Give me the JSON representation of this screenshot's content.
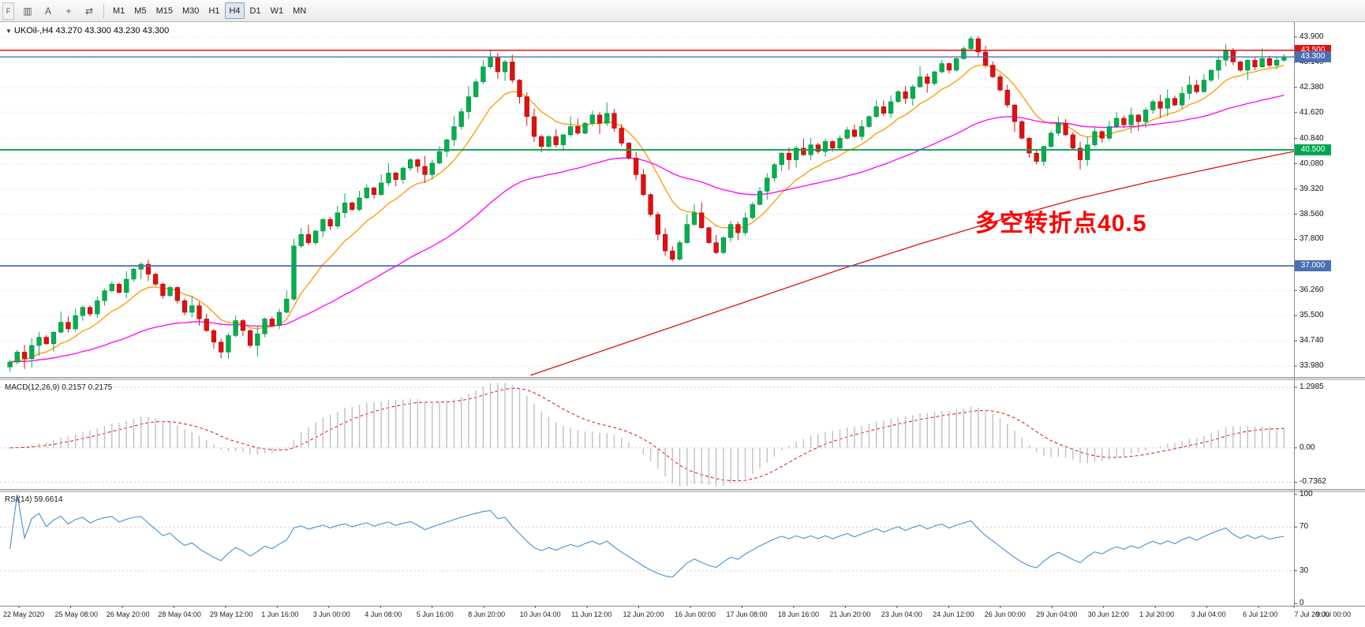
{
  "toolbar": {
    "tab_label": "F",
    "tools": [
      {
        "name": "chart-type-icon",
        "glyph": "▥"
      },
      {
        "name": "auto-scroll-button",
        "glyph": "A"
      },
      {
        "name": "crosshair-icon",
        "glyph": "+"
      },
      {
        "name": "timeframe-cycle-icon",
        "glyph": "⇄"
      }
    ],
    "timeframes": [
      "M1",
      "M5",
      "M15",
      "M30",
      "H1",
      "H4",
      "D1",
      "W1",
      "MN"
    ],
    "active_timeframe": "H4"
  },
  "chart": {
    "symbol_line": "UKOil-,H4 43.270 43.300 43.230 43.300",
    "symbol": "UKOil-",
    "timeframe": "H4",
    "ohlc": {
      "open": "43.270",
      "high": "43.300",
      "low": "43.230",
      "close": "43.300"
    },
    "annotation": {
      "text": "多空转折点40.5",
      "color": "#ff0000"
    },
    "levels": [
      {
        "label": "43.500",
        "price": 43.5,
        "color": "#e01010",
        "width": 1.6
      },
      {
        "label": "43.300",
        "price": 43.3,
        "color": "#4a6fb5",
        "width": 1.4
      },
      {
        "label": "40.500",
        "price": 40.5,
        "color": "#00a651",
        "width": 1.8
      },
      {
        "label": "37.000",
        "price": 37.0,
        "color": "#4a6fb5",
        "width": 1.8
      }
    ]
  },
  "price_axis": {
    "ticks": [
      {
        "label": "43.900",
        "value": 43.9
      },
      {
        "label": "43.140",
        "value": 43.14
      },
      {
        "label": "42.380",
        "value": 42.38
      },
      {
        "label": "41.620",
        "value": 41.62
      },
      {
        "label": "40.840",
        "value": 40.84
      },
      {
        "label": "40.080",
        "value": 40.08
      },
      {
        "label": "39.320",
        "value": 39.32
      },
      {
        "label": "38.560",
        "value": 38.56
      },
      {
        "label": "37.800",
        "value": 37.8
      },
      {
        "label": "36.260",
        "value": 36.26
      },
      {
        "label": "35.500",
        "value": 35.5
      },
      {
        "label": "34.740",
        "value": 34.74
      },
      {
        "label": "33.980",
        "value": 33.98
      }
    ]
  },
  "macd_pane": {
    "label": "MACD(12,26,9) 0.2157 0.2175",
    "axis": [
      {
        "label": "1.2985",
        "value": 1.2985
      },
      {
        "label": "0.00",
        "value": 0
      },
      {
        "label": "-0.7362",
        "value": -0.7362
      }
    ]
  },
  "rsi_pane": {
    "label": "RSI(14) 59.6614",
    "axis": [
      {
        "label": "100",
        "value": 100
      },
      {
        "label": "70",
        "value": 70
      },
      {
        "label": "30",
        "value": 30
      },
      {
        "label": "0",
        "value": 0
      }
    ],
    "levels": [
      70,
      30
    ]
  },
  "time_axis": {
    "labels": [
      "22 May 2020",
      "25 May 08:00",
      "26 May 20:00",
      "28 May 04:00",
      "29 May 12:00",
      "1 Jun 16:00",
      "3 Jun 00:00",
      "4 Jun 08:00",
      "5 Jun 16:00",
      "8 Jun 20:00",
      "10 Jun 04:00",
      "11 Jun 12:00",
      "12 Jun 20:00",
      "16 Jun 00:00",
      "17 Jun 08:00",
      "18 Jun 16:00",
      "21 Jun 20:00",
      "23 Jun 04:00",
      "24 Jun 12:00",
      "26 Jun 00:00",
      "29 Jun 04:00",
      "30 Jun 12:00",
      "1 Jul 20:00",
      "3 Jul 04:00",
      "6 Jul 12:00",
      "7 Jul 20:00",
      "9 Jul 00:00"
    ]
  },
  "colors": {
    "up": "#00b050",
    "up_edge": "#0a7a36",
    "down": "#e01010",
    "down_edge": "#a00000",
    "grid": "#d9d9d9",
    "macd_hist": "#c0c0c0",
    "macd_signal": "#e01010",
    "rsi_line": "#4a8fd0",
    "annotation": "#ff0000",
    "ma_fast": "#ff9800",
    "ma_medium": "#ff00ff",
    "ma_slow": "#e01010"
  },
  "chart_data": {
    "type": "candlestick",
    "symbol": "UKOil-",
    "timeframe": "H4",
    "ohlc_display": {
      "open": 43.27,
      "high": 43.3,
      "low": 43.23,
      "close": 43.3
    },
    "price_range": {
      "max": 44.35,
      "min": 33.65
    },
    "closes": [
      34.1,
      34.4,
      34.2,
      34.6,
      34.85,
      34.65,
      35.0,
      35.3,
      35.1,
      35.5,
      35.75,
      35.55,
      35.95,
      36.25,
      36.45,
      36.2,
      36.6,
      36.9,
      37.05,
      36.75,
      36.45,
      36.1,
      36.35,
      35.95,
      35.6,
      35.8,
      35.4,
      35.05,
      34.7,
      34.4,
      34.9,
      35.35,
      35.05,
      34.6,
      34.95,
      35.4,
      35.2,
      35.6,
      36.0,
      37.6,
      37.95,
      37.7,
      38.05,
      38.4,
      38.2,
      38.6,
      38.9,
      38.7,
      39.05,
      39.35,
      39.15,
      39.5,
      39.8,
      39.6,
      39.95,
      40.2,
      40.0,
      39.75,
      40.1,
      40.45,
      40.8,
      41.2,
      41.65,
      42.1,
      42.55,
      43.0,
      43.3,
      42.85,
      43.15,
      42.6,
      42.1,
      41.5,
      40.9,
      40.6,
      40.9,
      40.65,
      40.95,
      41.2,
      41.0,
      41.3,
      41.55,
      41.3,
      41.6,
      41.15,
      40.7,
      40.25,
      39.75,
      39.15,
      38.55,
      37.95,
      37.45,
      37.2,
      37.7,
      38.25,
      38.6,
      38.15,
      37.7,
      37.4,
      37.85,
      38.25,
      38.0,
      38.45,
      38.85,
      39.25,
      39.65,
      40.05,
      40.4,
      40.2,
      40.55,
      40.35,
      40.65,
      40.45,
      40.75,
      40.55,
      40.85,
      41.1,
      40.9,
      41.2,
      41.5,
      41.8,
      41.6,
      41.95,
      42.25,
      42.05,
      42.4,
      42.7,
      42.5,
      42.85,
      43.1,
      42.9,
      43.25,
      43.55,
      43.85,
      43.45,
      43.05,
      42.7,
      42.3,
      41.85,
      41.35,
      40.85,
      40.4,
      40.15,
      40.6,
      41.0,
      41.3,
      40.95,
      40.55,
      40.2,
      40.65,
      41.05,
      40.85,
      41.2,
      41.45,
      41.25,
      41.55,
      41.35,
      41.7,
      41.95,
      41.75,
      42.05,
      41.85,
      42.2,
      42.45,
      42.25,
      42.6,
      42.9,
      43.2,
      43.5,
      43.15,
      42.9,
      43.2,
      43.0,
      43.25,
      43.05,
      43.2,
      43.3
    ],
    "moving_averages": [
      {
        "name": "fast",
        "period": 10,
        "color": "#ff9800"
      },
      {
        "name": "medium",
        "period": 45,
        "color": "#ff00ff"
      },
      {
        "name": "slow",
        "color": "#e01010",
        "anchors": [
          [
            0.41,
            33.7
          ],
          [
            0.47,
            34.5
          ],
          [
            0.53,
            35.3
          ],
          [
            0.59,
            36.1
          ],
          [
            0.65,
            36.9
          ],
          [
            0.71,
            37.65
          ],
          [
            0.77,
            38.35
          ],
          [
            0.83,
            39.0
          ],
          [
            0.89,
            39.55
          ],
          [
            0.95,
            40.05
          ],
          [
            1.0,
            40.45
          ]
        ]
      }
    ],
    "horizontal_lines": [
      43.5,
      43.3,
      40.5,
      37.0
    ],
    "macd": {
      "fast": 12,
      "slow": 26,
      "signal": 9,
      "current": [
        0.2157,
        0.2175
      ],
      "range": {
        "max": 1.45,
        "min": -0.88
      },
      "axis_extremes": [
        1.2985,
        -0.7362
      ]
    },
    "rsi": {
      "period": 14,
      "current": 59.6614,
      "range": {
        "max": 102,
        "min": -2
      },
      "levels": [
        70,
        30
      ]
    }
  }
}
